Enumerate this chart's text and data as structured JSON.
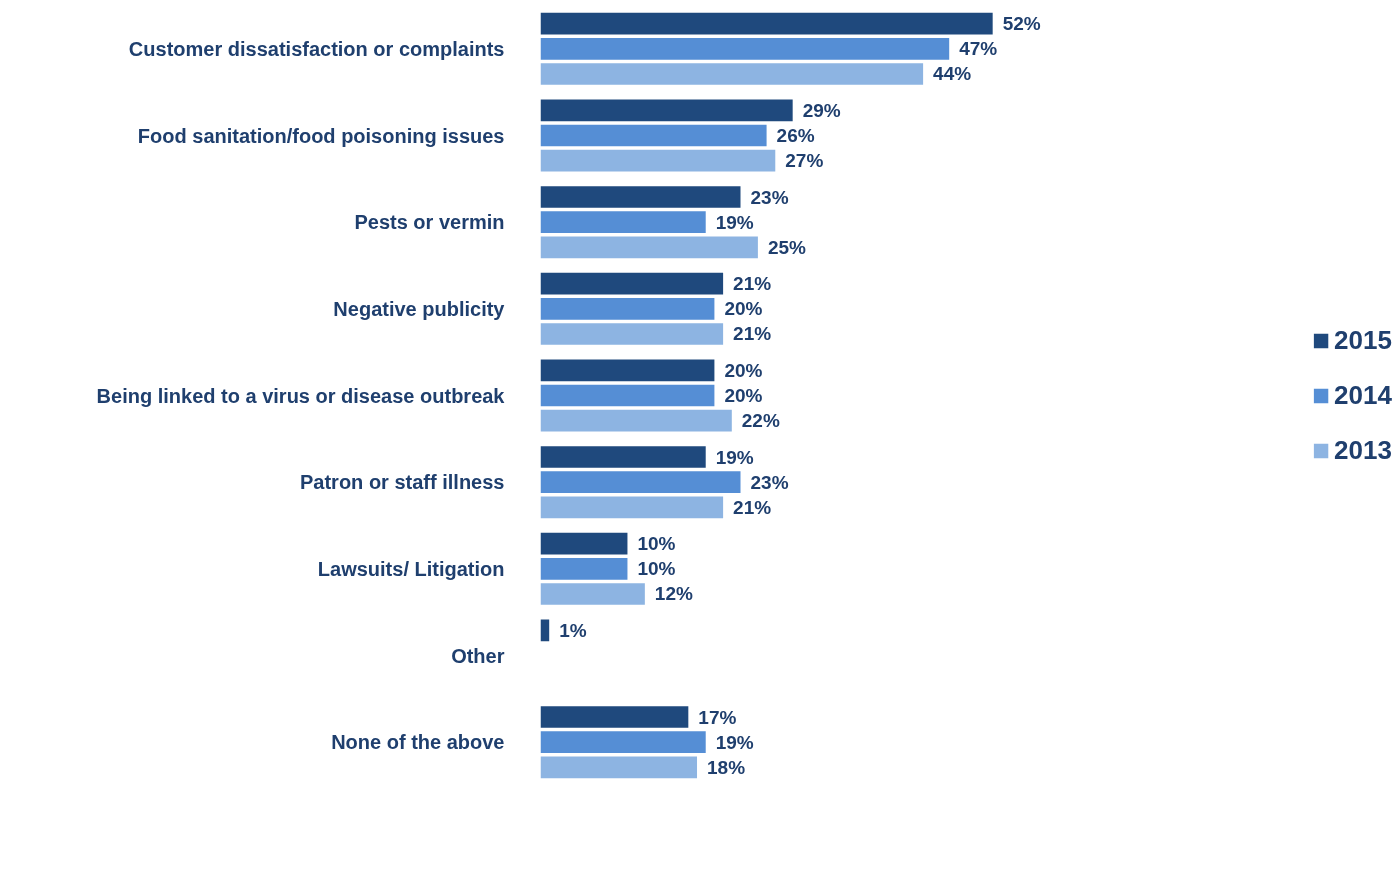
{
  "chart_data": {
    "type": "bar",
    "orientation": "horizontal",
    "categories": [
      "Customer dissatisfaction or complaints",
      "Food sanitation/food poisoning issues",
      "Pests or vermin",
      "Negative publicity",
      "Being linked to a virus or disease outbreak",
      "Patron or staff illness",
      "Lawsuits/ Litigation",
      "Other",
      "None of the above"
    ],
    "series": [
      {
        "name": "2015",
        "color": "#1f497d",
        "values": [
          52,
          29,
          23,
          21,
          20,
          19,
          10,
          1,
          17
        ],
        "value_labels": [
          "52%",
          "29%",
          "23%",
          "21%",
          "20%",
          "19%",
          "10%",
          "1%",
          "17%"
        ]
      },
      {
        "name": "2014",
        "color": "#558ed5",
        "values": [
          47,
          26,
          19,
          20,
          20,
          23,
          10,
          null,
          19
        ],
        "value_labels": [
          "47%",
          "26%",
          "19%",
          "20%",
          "20%",
          "23%",
          "10%",
          null,
          "19%"
        ]
      },
      {
        "name": "2013",
        "color": "#8db4e2",
        "values": [
          44,
          27,
          25,
          21,
          22,
          21,
          12,
          null,
          18
        ],
        "value_labels": [
          "44%",
          "27%",
          "25%",
          "21%",
          "22%",
          "21%",
          "12%",
          null,
          "18%"
        ]
      }
    ],
    "legend": "right",
    "grid": false
  }
}
